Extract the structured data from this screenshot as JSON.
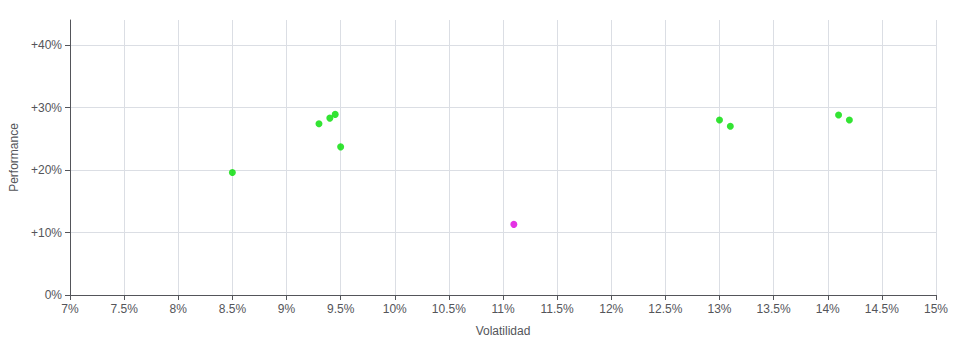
{
  "chart_data": {
    "type": "scatter",
    "xlabel": "Volatilidad",
    "ylabel": "Performance",
    "xlim": [
      0.07,
      0.15
    ],
    "ylim": [
      0.0,
      0.44
    ],
    "xticks": [
      {
        "value": 0.07,
        "label": "7%"
      },
      {
        "value": 0.075,
        "label": "7.5%"
      },
      {
        "value": 0.08,
        "label": "8%"
      },
      {
        "value": 0.085,
        "label": "8.5%"
      },
      {
        "value": 0.09,
        "label": "9%"
      },
      {
        "value": 0.095,
        "label": "9.5%"
      },
      {
        "value": 0.1,
        "label": "10%"
      },
      {
        "value": 0.105,
        "label": "10.5%"
      },
      {
        "value": 0.11,
        "label": "11%"
      },
      {
        "value": 0.115,
        "label": "11.5%"
      },
      {
        "value": 0.12,
        "label": "12%"
      },
      {
        "value": 0.125,
        "label": "12.5%"
      },
      {
        "value": 0.13,
        "label": "13%"
      },
      {
        "value": 0.135,
        "label": "13.5%"
      },
      {
        "value": 0.14,
        "label": "14%"
      },
      {
        "value": 0.145,
        "label": "14.5%"
      },
      {
        "value": 0.15,
        "label": "15%"
      }
    ],
    "yticks": [
      {
        "value": 0.0,
        "label": "0%"
      },
      {
        "value": 0.1,
        "label": "+10%"
      },
      {
        "value": 0.2,
        "label": "+20%"
      },
      {
        "value": 0.3,
        "label": "+30%"
      },
      {
        "value": 0.4,
        "label": "+40%"
      }
    ],
    "grid": true,
    "series": [
      {
        "color": "#00dd00",
        "x": [
          0.085,
          0.093,
          0.094,
          0.0945,
          0.095,
          0.13,
          0.131,
          0.141,
          0.142
        ],
        "values": [
          0.196,
          0.274,
          0.283,
          0.289,
          0.237,
          0.28,
          0.27,
          0.288,
          0.28
        ]
      },
      {
        "color": "#dd00dd",
        "x": [
          0.111
        ],
        "values": [
          0.113
        ]
      }
    ]
  }
}
